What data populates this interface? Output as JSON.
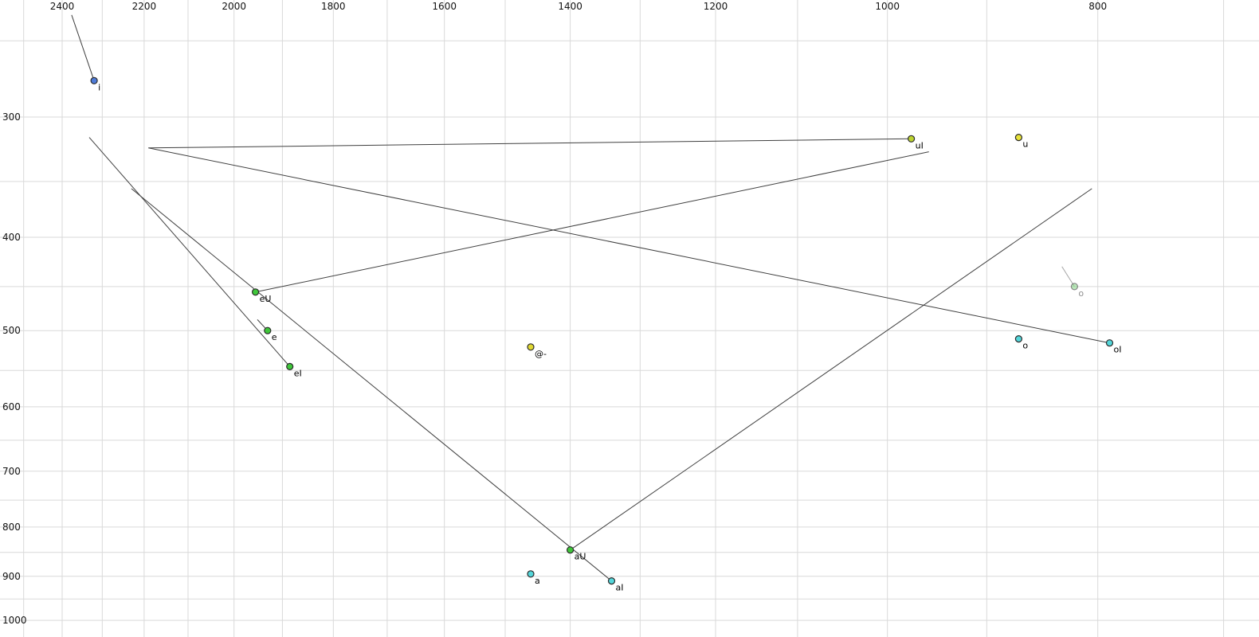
{
  "chart_data": {
    "type": "scatter",
    "title": "",
    "xlabel": "",
    "ylabel": "",
    "description": "Vowel formant plot: F2 (Hz) on horizontal axis reversed, F1 (Hz) on vertical axis reversed, log-scaled axes. Dots mark vowel targets, thin lines mark diphthong trajectories.",
    "x_axis": {
      "unit": "Hz",
      "scale": "log",
      "reversed": true,
      "range": [
        2500,
        675
      ],
      "ticks": [
        2400,
        2200,
        2000,
        1800,
        1600,
        1400,
        1200,
        1000,
        800
      ]
    },
    "y_axis": {
      "unit": "Hz",
      "scale": "log",
      "reversed": true,
      "range": [
        225,
        1040
      ],
      "ticks": [
        300,
        400,
        500,
        600,
        700,
        800,
        900,
        1000
      ]
    },
    "grid": {
      "x_min": 700,
      "x_max": 2500,
      "x_step": 100,
      "y_min": 250,
      "y_max": 1000,
      "y_step": 50
    },
    "points": [
      {
        "id": "i",
        "label": "i",
        "f2": 2320,
        "f1": 275,
        "color": "#4e7bd8",
        "faded": false,
        "line": {
          "f2": 2376,
          "f1": 235
        }
      },
      {
        "id": "uI",
        "label": "uI",
        "f2": 975,
        "f1": 316,
        "color": "#bcd32f",
        "faded": false,
        "line": {
          "f2": 2190,
          "f1": 323
        }
      },
      {
        "id": "u",
        "label": "u",
        "f2": 870,
        "f1": 315,
        "color": "#e8e33a",
        "faded": false,
        "line": null
      },
      {
        "id": "eU",
        "label": "eU",
        "f2": 1955,
        "f1": 456,
        "color": "#3fc63a",
        "faded": false,
        "line": {
          "f2": 957,
          "f1": 326
        }
      },
      {
        "id": "e",
        "label": "e",
        "f2": 1930,
        "f1": 500,
        "color": "#3fc63a",
        "faded": false,
        "line": {
          "f2": 1951,
          "f1": 487
        }
      },
      {
        "id": "eI",
        "label": "eI",
        "f2": 1885,
        "f1": 545,
        "color": "#3fc63a",
        "faded": false,
        "line": {
          "f2": 2332,
          "f1": 315
        }
      },
      {
        "id": "schwa",
        "label": "@-",
        "f2": 1460,
        "f1": 520,
        "color": "#e0d832",
        "faded": false,
        "line": null
      },
      {
        "id": "o-offglide",
        "label": "o",
        "f2": 820,
        "f1": 450,
        "color": "#84d884",
        "faded": true,
        "line": {
          "f2": 831,
          "f1": 429
        }
      },
      {
        "id": "o",
        "label": "o",
        "f2": 870,
        "f1": 510,
        "color": "#54d6da",
        "faded": false,
        "line": null
      },
      {
        "id": "oI",
        "label": "oI",
        "f2": 790,
        "f1": 515,
        "color": "#54d6da",
        "faded": false,
        "line": {
          "f2": 2190,
          "f1": 323
        }
      },
      {
        "id": "aU",
        "label": "aU",
        "f2": 1400,
        "f1": 845,
        "color": "#3fc63a",
        "faded": false,
        "line": {
          "f2": 805,
          "f1": 356
        }
      },
      {
        "id": "a",
        "label": "a",
        "f2": 1460,
        "f1": 895,
        "color": "#54d6da",
        "faded": false,
        "line": null
      },
      {
        "id": "aI",
        "label": "aI",
        "f2": 1340,
        "f1": 910,
        "color": "#54d6da",
        "faded": false,
        "line": {
          "f2": 2230,
          "f1": 356
        }
      }
    ],
    "colors": {
      "background": "#ffffff",
      "grid": "#d9d9d9",
      "line": "#404040",
      "faded_line": "#a8a8a8",
      "point_stroke": "#2a2a2a",
      "point_label": "#000000",
      "faded_label": "#909090",
      "axis_label": "#111111"
    }
  }
}
